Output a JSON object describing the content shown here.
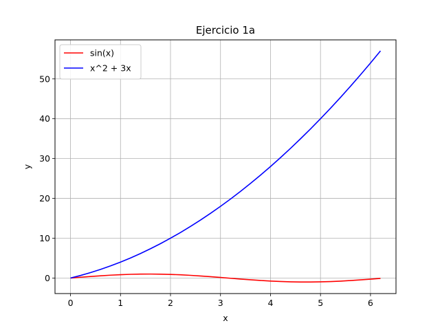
{
  "chart_data": {
    "type": "line",
    "title": "Ejercicio 1a",
    "xlabel": "x",
    "ylabel": "y",
    "xlim": [
      -0.31,
      6.51
    ],
    "ylim": [
      -3.9,
      59.8
    ],
    "x_ticks": [
      0,
      1,
      2,
      3,
      4,
      5,
      6
    ],
    "y_ticks": [
      0,
      10,
      20,
      30,
      40,
      50
    ],
    "grid": true,
    "legend_position": "upper-left",
    "series": [
      {
        "name": "sin(x)",
        "color": "#ff0000",
        "x": [
          0,
          0.2,
          0.4,
          0.6,
          0.8,
          1.0,
          1.2,
          1.4,
          1.6,
          1.8,
          2.0,
          2.2,
          2.4,
          2.6,
          2.8,
          3.0,
          3.2,
          3.4,
          3.6,
          3.8,
          4.0,
          4.2,
          4.4,
          4.6,
          4.8,
          5.0,
          5.2,
          5.4,
          5.6,
          5.8,
          6.0,
          6.2
        ],
        "y": [
          0,
          0.199,
          0.389,
          0.565,
          0.717,
          0.841,
          0.932,
          0.985,
          1.0,
          0.974,
          0.909,
          0.808,
          0.675,
          0.516,
          0.335,
          0.141,
          -0.058,
          -0.256,
          -0.443,
          -0.612,
          -0.757,
          -0.872,
          -0.952,
          -0.994,
          -0.996,
          -0.959,
          -0.883,
          -0.773,
          -0.631,
          -0.465,
          -0.279,
          -0.083
        ]
      },
      {
        "name": "x^2 + 3x",
        "color": "#0000ff",
        "x": [
          0,
          0.2,
          0.4,
          0.6,
          0.8,
          1.0,
          1.2,
          1.4,
          1.6,
          1.8,
          2.0,
          2.2,
          2.4,
          2.6,
          2.8,
          3.0,
          3.2,
          3.4,
          3.6,
          3.8,
          4.0,
          4.2,
          4.4,
          4.6,
          4.8,
          5.0,
          5.2,
          5.4,
          5.6,
          5.8,
          6.0,
          6.2
        ],
        "y": [
          0,
          0.64,
          1.36,
          2.16,
          3.04,
          4.0,
          5.04,
          6.16,
          7.36,
          8.64,
          10.0,
          11.44,
          12.96,
          14.56,
          16.24,
          18.0,
          19.84,
          21.76,
          23.76,
          25.84,
          28.0,
          30.24,
          32.56,
          34.96,
          37.44,
          40.0,
          42.64,
          45.36,
          48.16,
          51.04,
          54.0,
          57.04
        ]
      }
    ]
  }
}
